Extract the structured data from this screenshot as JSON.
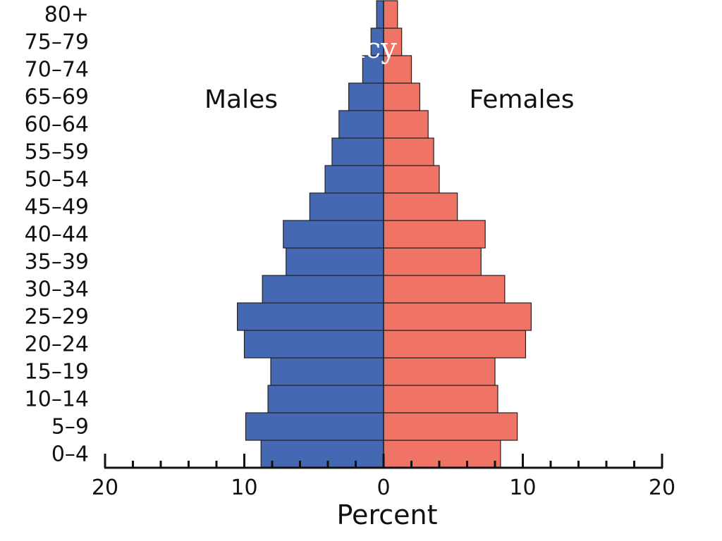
{
  "chart_data": {
    "type": "bar",
    "orientation": "horizontal",
    "layout": "population-pyramid",
    "categories": [
      "0–4",
      "5–9",
      "10–14",
      "15–19",
      "20–24",
      "25–29",
      "30–34",
      "35–39",
      "40–44",
      "45–49",
      "50–54",
      "55–59",
      "60–64",
      "65–69",
      "70–74",
      "75–79",
      "80+"
    ],
    "series": [
      {
        "name": "Males",
        "color": "#4568b2",
        "values": [
          8.8,
          9.9,
          8.3,
          8.1,
          10.0,
          10.5,
          8.7,
          7.0,
          7.2,
          5.3,
          4.2,
          3.7,
          3.2,
          2.5,
          1.5,
          0.9,
          0.5
        ]
      },
      {
        "name": "Females",
        "color": "#ef7466",
        "values": [
          8.4,
          9.6,
          8.2,
          8.0,
          10.2,
          10.6,
          8.7,
          7.0,
          7.3,
          5.3,
          4.0,
          3.6,
          3.2,
          2.6,
          2.0,
          1.3,
          1.0
        ]
      }
    ],
    "xlabel": "Percent",
    "xticks": [
      "20",
      "10",
      "0",
      "10",
      "20"
    ],
    "xlim": [
      -20,
      20
    ],
    "minor_tick_step": 2,
    "annotations": [
      "icy"
    ]
  }
}
